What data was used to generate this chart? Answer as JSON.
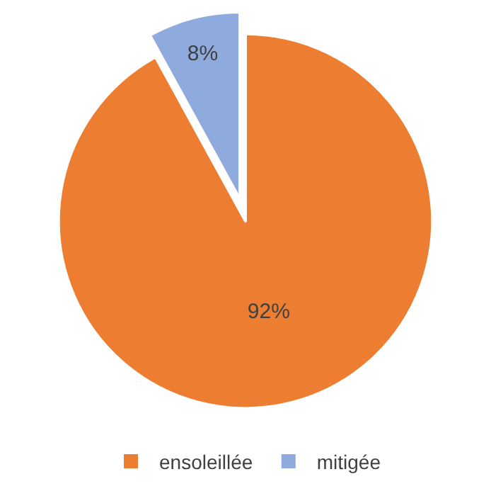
{
  "chart_data": {
    "type": "pie",
    "categories": [
      "ensoleillée",
      "mitigée"
    ],
    "values": [
      92,
      8
    ],
    "colors": [
      "#ed7d31",
      "#8faadc"
    ],
    "value_labels": [
      "92%",
      "8%"
    ],
    "legend": "bottom"
  }
}
